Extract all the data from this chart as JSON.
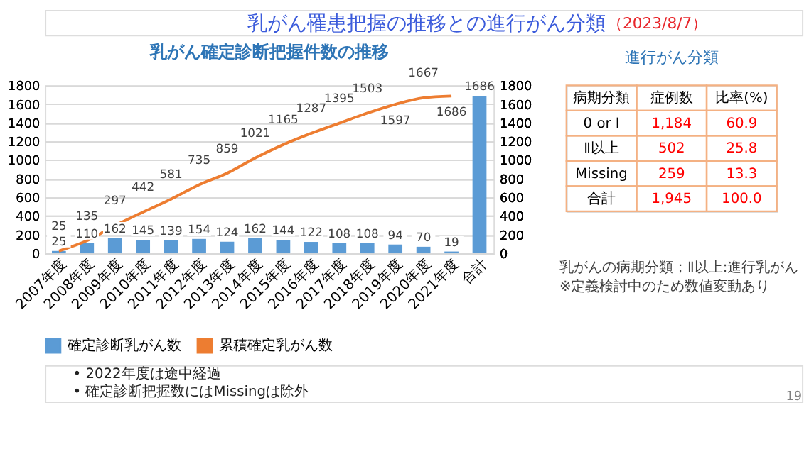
{
  "chart_data": [
    {
      "type": "bar",
      "title": "乳がん確定診断把握件数の推移",
      "categories": [
        "2007年度",
        "2008年度",
        "2009年度",
        "2010年度",
        "2011年度",
        "2012年度",
        "2013年度",
        "2014年度",
        "2015年度",
        "2016年度",
        "2017年度",
        "2018年度",
        "2019年度",
        "2020年度",
        "2021年度",
        "合計"
      ],
      "series": [
        {
          "name": "確定診断乳がん数",
          "type": "bar",
          "color": "#5b9bd5",
          "values": [
            25,
            110,
            162,
            145,
            139,
            154,
            124,
            162,
            144,
            122,
            108,
            108,
            94,
            70,
            19,
            1686
          ]
        },
        {
          "name": "累積確定乳がん数",
          "type": "line",
          "axis": "y2",
          "color": "#ed7d31",
          "values": [
            25,
            135,
            297,
            442,
            581,
            735,
            859,
            1021,
            1165,
            1287,
            1395,
            1503,
            1597,
            1667,
            1686,
            null
          ]
        }
      ],
      "ylim": [
        0,
        1800
      ],
      "yticks": [
        0,
        200,
        400,
        600,
        800,
        1000,
        1200,
        1400,
        1600,
        1800
      ],
      "y2lim": [
        0,
        1800
      ],
      "y2ticks": [
        0,
        200,
        400,
        600,
        800,
        1000,
        1200,
        1400,
        1600,
        1800
      ],
      "grid": "y",
      "legend": "bottom",
      "data_labels": true,
      "marker": "none",
      "annotations": [
        "乳がん罹患把握の推移との進行がん分類",
        "（2023/8/7）",
        "• 2022年度は途中経過",
        "• 確定診断把握数にはMissingは除外",
        "19"
      ]
    },
    {
      "type": "other",
      "title": "進行がん分類",
      "xlabel": "病期分類",
      "legend": "top",
      "categories": [
        "0 or Ⅰ",
        "Ⅱ以上",
        "Missing",
        "合計"
      ],
      "series": [
        {
          "name": "症例数",
          "values": [
            1184,
            502,
            259,
            1945
          ],
          "value_labels": [
            "1,184",
            "502",
            "259",
            "1,945"
          ]
        },
        {
          "name": "比率(%)",
          "values": [
            60.9,
            25.8,
            13.3,
            100.0
          ],
          "value_labels": [
            "60.9",
            "25.8",
            "13.3",
            "100.0"
          ]
        }
      ],
      "annotations": [
        "乳がんの病期分類；Ⅱ以上:進行乳がん",
        "※定義検討中のため数値変動あり"
      ]
    }
  ]
}
